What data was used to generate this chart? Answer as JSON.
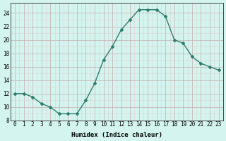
{
  "x": [
    0,
    1,
    2,
    3,
    4,
    5,
    6,
    7,
    8,
    9,
    10,
    11,
    12,
    13,
    14,
    15,
    16,
    17,
    18,
    19,
    20,
    21,
    22,
    23
  ],
  "y": [
    12,
    12,
    11.5,
    10.5,
    10,
    9,
    9,
    9,
    11,
    13.5,
    17,
    19,
    21.5,
    23,
    24.5,
    24.5,
    24.5,
    23.5,
    20,
    19.5,
    17.5,
    16.5,
    16,
    15.5
  ],
  "line_color": "#2e7d6e",
  "marker": "D",
  "marker_size": 2.0,
  "bg_color": "#d4f5ef",
  "grid_major_color": "#c8b8b8",
  "grid_minor_color": "#ddd0d0",
  "xlabel": "Humidex (Indice chaleur)",
  "xlim": [
    -0.5,
    23.5
  ],
  "ylim": [
    8,
    25.5
  ],
  "yticks": [
    8,
    10,
    12,
    14,
    16,
    18,
    20,
    22,
    24
  ],
  "xticks": [
    0,
    1,
    2,
    3,
    4,
    5,
    6,
    7,
    8,
    9,
    10,
    11,
    12,
    13,
    14,
    15,
    16,
    17,
    18,
    19,
    20,
    21,
    22,
    23
  ],
  "xlabel_fontsize": 6.5,
  "tick_fontsize": 5.5
}
